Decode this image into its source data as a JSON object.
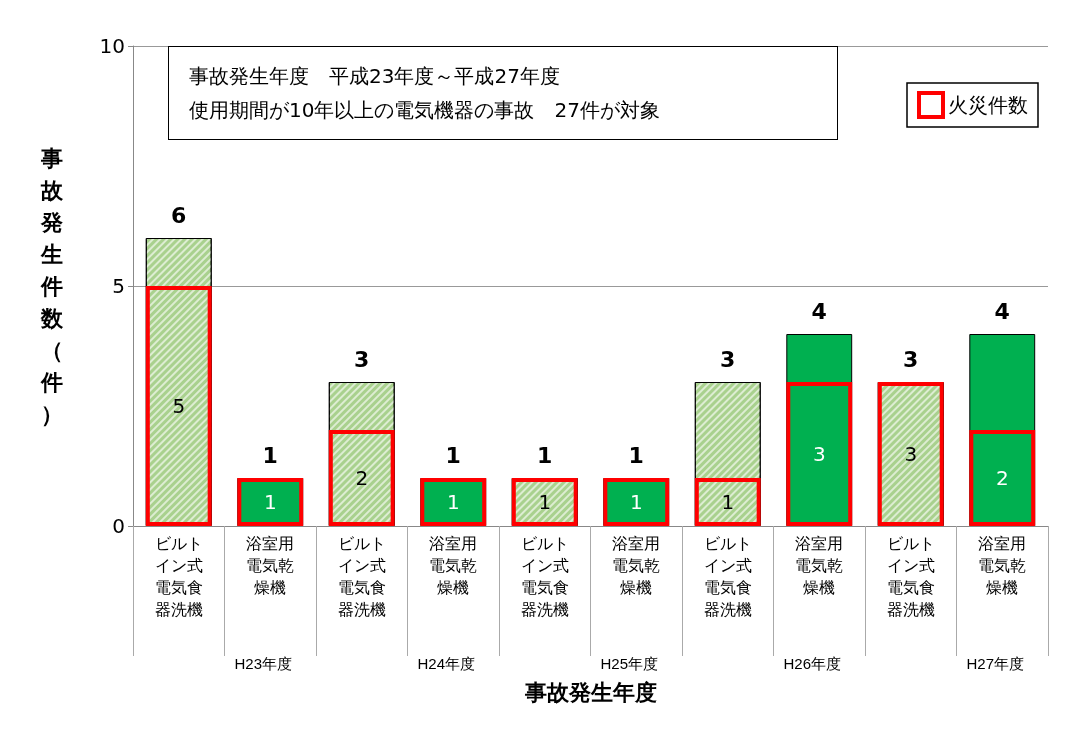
{
  "chart_data": {
    "type": "bar",
    "title": "事故発生年度　平成23年度～平成27年度",
    "subtitle": "使用期間が10年以上の電気機器の事故　27件が対象",
    "xlabel": "事故発生年度",
    "ylabel": "事故発生件数（件）",
    "categories": [
      "ビルトイン式電気食器洗機",
      "浴室用電気乾燥機",
      "ビルトイン式電気食器洗機",
      "浴室用電気乾燥機",
      "ビルトイン式電気食器洗機",
      "浴室用電気乾燥機",
      "ビルトイン式電気食器洗機",
      "浴室用電気乾燥機",
      "ビルトイン式電気食器洗機",
      "浴室用電気乾燥機"
    ],
    "annotations": [
      "H23年度",
      "H24年度",
      "H25年度",
      "H26年度",
      "H27年度"
    ],
    "series": [
      {
        "values": [
          6,
          1,
          3,
          1,
          1,
          1,
          3,
          4,
          3,
          4
        ],
        "colors": [
          "#a9d18e",
          "#00b050",
          "#a9d18e",
          "#00b050",
          "#a9d18e",
          "#00b050",
          "#a9d18e",
          "#00b050",
          "#a9d18e",
          "#00b050"
        ]
      },
      {
        "name": "火災件数",
        "color": "#ff0000",
        "values": [
          5,
          1,
          2,
          1,
          1,
          1,
          1,
          3,
          3,
          2
        ]
      }
    ],
    "ylim": [
      0,
      10
    ],
    "yticks": [
      0,
      5,
      10
    ],
    "grid": "y",
    "legend": "top right",
    "data_labels": true
  }
}
